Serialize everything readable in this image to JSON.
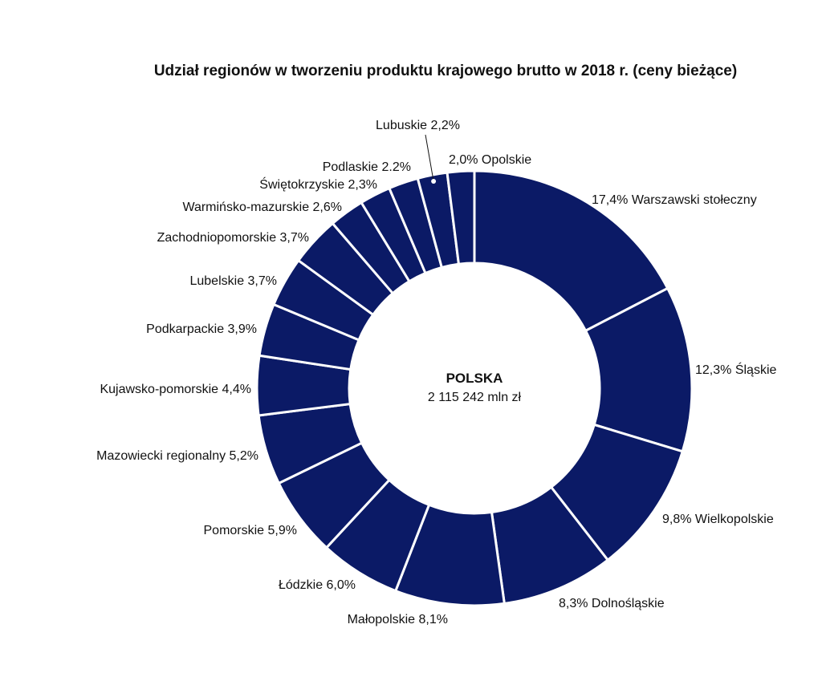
{
  "chart_data": {
    "type": "pie",
    "title": "Udział regionów w tworzeniu produktu krajowego brutto w 2018 r. (ceny bieżące)",
    "center": {
      "title": "POLSKA",
      "value": "2 115 242 mln zł"
    },
    "color": "#0b1a66",
    "slices": [
      {
        "name": "Warszawski stołeczny",
        "value": 17.4,
        "label": "17,4% Warszawski stołeczny"
      },
      {
        "name": "Śląskie",
        "value": 12.3,
        "label": "12,3% Śląskie"
      },
      {
        "name": "Wielkopolskie",
        "value": 9.8,
        "label": "9,8% Wielkopolskie"
      },
      {
        "name": "Dolnośląskie",
        "value": 8.3,
        "label": "8,3% Dolnośląskie"
      },
      {
        "name": "Małopolskie",
        "value": 8.1,
        "label": "Małopolskie 8,1%"
      },
      {
        "name": "Łódzkie",
        "value": 6.0,
        "label": "Łódzkie 6,0%"
      },
      {
        "name": "Pomorskie",
        "value": 5.9,
        "label": "Pomorskie 5,9%"
      },
      {
        "name": "Mazowiecki regionalny",
        "value": 5.2,
        "label": "Mazowiecki regionalny 5,2%"
      },
      {
        "name": "Kujawsko-pomorskie",
        "value": 4.4,
        "label": "Kujawsko-pomorskie 4,4%"
      },
      {
        "name": "Podkarpackie",
        "value": 3.9,
        "label": "Podkarpackie 3,9%"
      },
      {
        "name": "Lubelskie",
        "value": 3.7,
        "label": "Lubelskie 3,7%"
      },
      {
        "name": "Zachodniopomorskie",
        "value": 3.7,
        "label": "Zachodniopomorskie 3,7%"
      },
      {
        "name": "Warmińsko-mazurskie",
        "value": 2.6,
        "label": "Warmińsko-mazurskie 2,6%"
      },
      {
        "name": "Świętokrzyskie",
        "value": 2.3,
        "label": "Świętokrzyskie 2,3%"
      },
      {
        "name": "Podlaskie",
        "value": 2.2,
        "label": "Podlaskie 2.2%"
      },
      {
        "name": "Lubuskie",
        "value": 2.2,
        "label": "Lubuskie 2,2%"
      },
      {
        "name": "Opolskie",
        "value": 2.0,
        "label": "2,0% Opolskie"
      }
    ]
  }
}
